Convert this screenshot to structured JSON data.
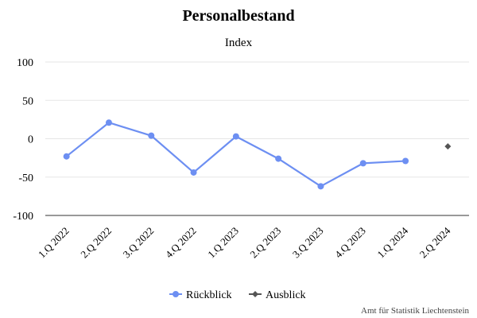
{
  "chart_data": {
    "type": "line",
    "title": "Personalbestand",
    "subtitle": "Index",
    "xlabel": "",
    "ylabel": "",
    "categories": [
      "1.Q 2022",
      "2.Q 2022",
      "3.Q 2022",
      "4.Q 2022",
      "1.Q 2023",
      "2.Q 2023",
      "3.Q 2023",
      "4.Q 2023",
      "1.Q 2024",
      "2.Q 2024"
    ],
    "yticks": [
      "100",
      "50",
      "0",
      "-50",
      "-100"
    ],
    "ylim": [
      -100,
      100
    ],
    "grid": true,
    "legend_position": "bottom",
    "series": [
      {
        "name": "Rückblick",
        "color": "#6d8ff2",
        "marker": "circle",
        "values": [
          -23,
          21,
          4,
          -44,
          3,
          -26,
          -62,
          -32,
          -29,
          null
        ]
      },
      {
        "name": "Ausblick",
        "color": "#555555",
        "marker": "diamond",
        "values": [
          null,
          null,
          null,
          null,
          null,
          null,
          null,
          null,
          null,
          -10
        ]
      }
    ]
  },
  "credit": "Amt für Statistik Liechtenstein"
}
